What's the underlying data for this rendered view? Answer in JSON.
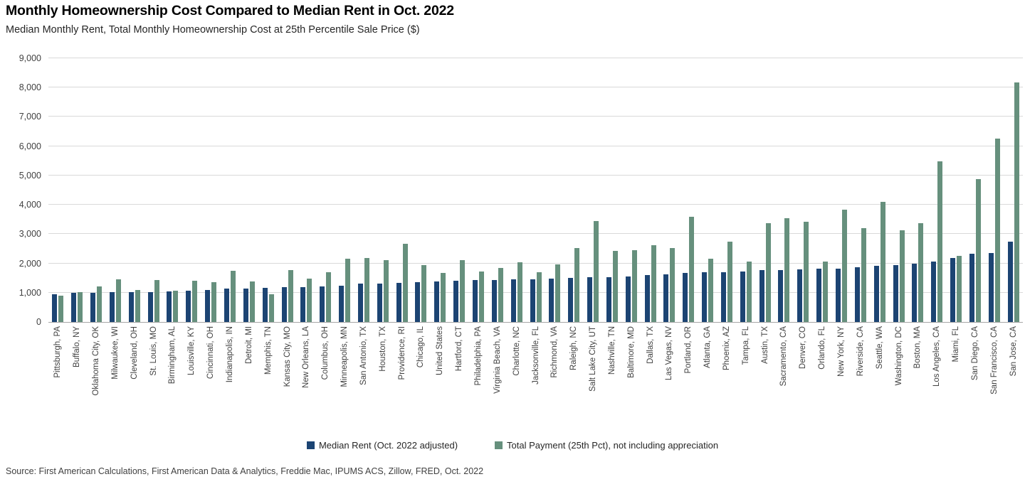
{
  "header": {
    "title": "Monthly Homeownership Cost Compared to Median Rent in Oct. 2022",
    "subtitle": "Median Monthly Rent, Total Monthly Homeownership Cost at 25th Percentile Sale Price ($)"
  },
  "footer": {
    "source": "Source: First American Calculations, First American Data & Analytics, Freddie Mac, IPUMS ACS, Zillow, FRED, Oct. 2022"
  },
  "chart_data": {
    "type": "bar",
    "title": "Monthly Homeownership Cost Compared to Median Rent in Oct. 2022",
    "subtitle": "Median Monthly Rent, Total Monthly Homeownership Cost at 25th Percentile Sale Price ($)",
    "xlabel": "",
    "ylabel": "",
    "ylim": [
      0,
      9000
    ],
    "ytick_step": 1000,
    "grid": "horizontal",
    "legend_position": "bottom-center",
    "categories": [
      "Pittsburgh, PA",
      "Buffalo, NY",
      "Oklahoma City, OK",
      "Milwaukee, WI",
      "Cleveland, OH",
      "St. Louis, MO",
      "Birmingham, AL",
      "Louisville, KY",
      "Cincinnati, OH",
      "Indianapolis, IN",
      "Detroit, MI",
      "Memphis, TN",
      "Kansas City, MO",
      "New Orleans, LA",
      "Columbus, OH",
      "Minneapolis, MN",
      "San Antonio, TX",
      "Houston, TX",
      "Providence, RI",
      "Chicago, IL",
      "United States",
      "Hartford, CT",
      "Philadelphia, PA",
      "Virginia Beach, VA",
      "Charlotte, NC",
      "Jacksonville, FL",
      "Richmond, VA",
      "Raleigh, NC",
      "Salt Lake City, UT",
      "Nashville, TN",
      "Baltimore, MD",
      "Dallas, TX",
      "Las Vegas, NV",
      "Portland, OR",
      "Atlanta, GA",
      "Phoenix, AZ",
      "Tampa, FL",
      "Austin, TX",
      "Sacramento, CA",
      "Denver, CO",
      "Orlando, FL",
      "New York, NY",
      "Riverside, CA",
      "Seattle, WA",
      "Washington, DC",
      "Boston, MA",
      "Los Angeles, CA",
      "Miami, FL",
      "San Diego, CA",
      "San Francisco, CA",
      "San Jose, CA"
    ],
    "series": [
      {
        "name": "Median Rent (Oct. 2022 adjusted)",
        "color": "#1c4473",
        "values": [
          950,
          1000,
          1000,
          1010,
          1010,
          1030,
          1050,
          1060,
          1080,
          1130,
          1150,
          1170,
          1190,
          1200,
          1220,
          1240,
          1310,
          1320,
          1330,
          1350,
          1390,
          1400,
          1420,
          1440,
          1450,
          1460,
          1480,
          1510,
          1520,
          1530,
          1560,
          1600,
          1630,
          1670,
          1700,
          1710,
          1720,
          1760,
          1780,
          1800,
          1810,
          1830,
          1880,
          1920,
          1950,
          1990,
          2050,
          2180,
          2340,
          2360,
          2740
        ]
      },
      {
        "name": "Total Payment (25th Pct), not including appreciation",
        "color": "#66907d",
        "values": [
          890,
          1010,
          1220,
          1460,
          1090,
          1420,
          1075,
          1400,
          1360,
          1740,
          1390,
          950,
          1760,
          1470,
          1710,
          2160,
          2190,
          2110,
          2660,
          1940,
          1680,
          2100,
          1720,
          1850,
          2040,
          1690,
          1970,
          2520,
          3440,
          2430,
          2440,
          2630,
          2530,
          3580,
          2160,
          2740,
          2050,
          3360,
          3550,
          3430,
          2060,
          3830,
          3210,
          4100,
          3120,
          3360,
          5480,
          2250,
          4870,
          6270,
          8170
        ]
      }
    ]
  }
}
